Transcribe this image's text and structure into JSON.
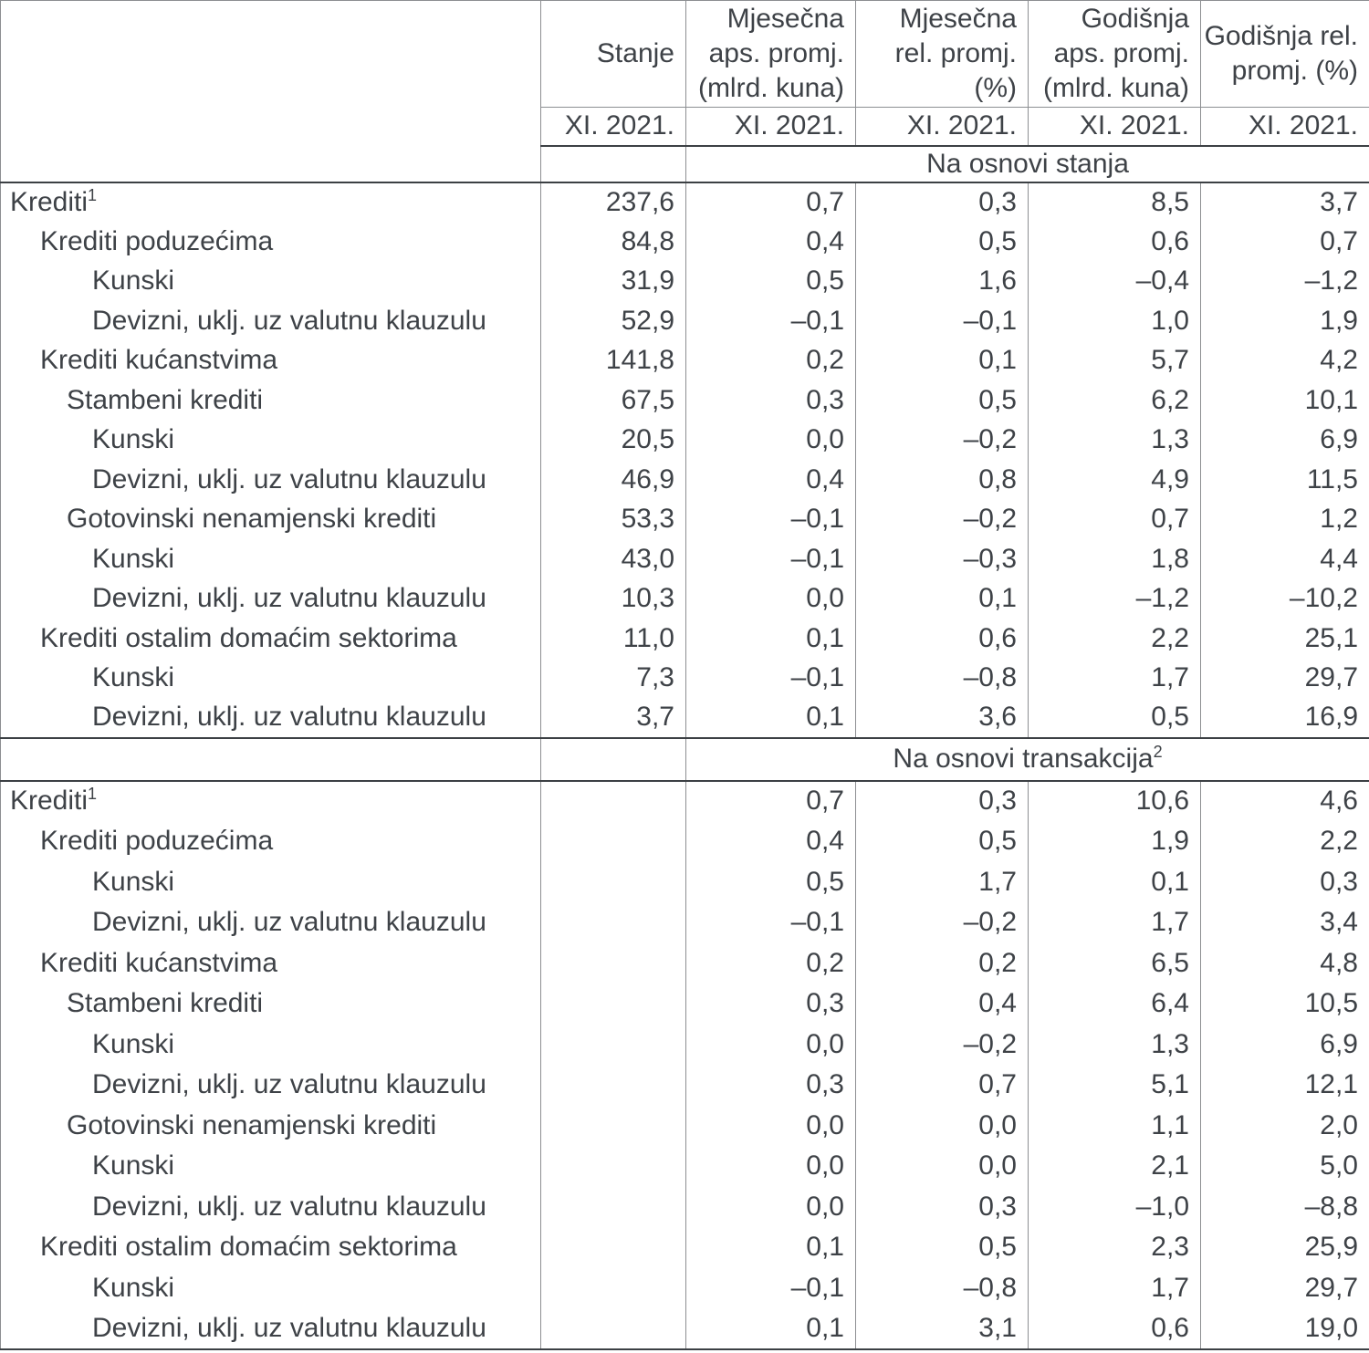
{
  "colors": {
    "text": "#3e4247",
    "line-light": "#8d8f92",
    "line-dark": "#3c4044",
    "bg": "#ffffff"
  },
  "table": {
    "columns": [
      {
        "key": "stanje",
        "title": "Stanje",
        "period": "XI. 2021."
      },
      {
        "key": "mjesecna-aps-promj",
        "title": "Mjesečna\naps. promj.\n(mlrd. kuna)",
        "period": "XI. 2021."
      },
      {
        "key": "mjesecna-rel-promj",
        "title": "Mjesečna\nrel. promj.\n(%)",
        "period": "XI. 2021."
      },
      {
        "key": "godisnja-aps-promj",
        "title": "Godišnja\naps. promj.\n(mlrd. kuna)",
        "period": "XI. 2021."
      },
      {
        "key": "godisnja-rel-promj",
        "title": "Godišnja rel.\npromj. (%)",
        "period": "XI. 2021."
      }
    ],
    "sections": [
      {
        "banner": "Na osnovi stanja",
        "banner_sup": "",
        "rows": [
          {
            "label": "Krediti",
            "sup": "1",
            "indent": 0,
            "values": [
              "237,6",
              "0,7",
              "0,3",
              "8,5",
              "3,7"
            ]
          },
          {
            "label": "Krediti poduzećima",
            "sup": "",
            "indent": 1,
            "values": [
              "84,8",
              "0,4",
              "0,5",
              "0,6",
              "0,7"
            ]
          },
          {
            "label": "Kunski",
            "sup": "",
            "indent": 3,
            "values": [
              "31,9",
              "0,5",
              "1,6",
              "–0,4",
              "–1,2"
            ]
          },
          {
            "label": "Devizni, uklj. uz valutnu klauzulu",
            "sup": "",
            "indent": 3,
            "values": [
              "52,9",
              "–0,1",
              "–0,1",
              "1,0",
              "1,9"
            ]
          },
          {
            "label": "Krediti kućanstvima",
            "sup": "",
            "indent": 1,
            "values": [
              "141,8",
              "0,2",
              "0,1",
              "5,7",
              "4,2"
            ]
          },
          {
            "label": "Stambeni krediti",
            "sup": "",
            "indent": 2,
            "values": [
              "67,5",
              "0,3",
              "0,5",
              "6,2",
              "10,1"
            ]
          },
          {
            "label": "Kunski",
            "sup": "",
            "indent": 3,
            "values": [
              "20,5",
              "0,0",
              "–0,2",
              "1,3",
              "6,9"
            ]
          },
          {
            "label": "Devizni, uklj. uz valutnu klauzulu",
            "sup": "",
            "indent": 3,
            "values": [
              "46,9",
              "0,4",
              "0,8",
              "4,9",
              "11,5"
            ]
          },
          {
            "label": "Gotovinski nenamjenski krediti",
            "sup": "",
            "indent": 2,
            "values": [
              "53,3",
              "–0,1",
              "–0,2",
              "0,7",
              "1,2"
            ]
          },
          {
            "label": "Kunski",
            "sup": "",
            "indent": 3,
            "values": [
              "43,0",
              "–0,1",
              "–0,3",
              "1,8",
              "4,4"
            ]
          },
          {
            "label": "Devizni, uklj. uz valutnu klauzulu",
            "sup": "",
            "indent": 3,
            "values": [
              "10,3",
              "0,0",
              "0,1",
              "–1,2",
              "–10,2"
            ]
          },
          {
            "label": "Krediti ostalim domaćim sektorima",
            "sup": "",
            "indent": 1,
            "values": [
              "11,0",
              "0,1",
              "0,6",
              "2,2",
              "25,1"
            ]
          },
          {
            "label": "Kunski",
            "sup": "",
            "indent": 3,
            "values": [
              "7,3",
              "–0,1",
              "–0,8",
              "1,7",
              "29,7"
            ]
          },
          {
            "label": "Devizni, uklj. uz valutnu klauzulu",
            "sup": "",
            "indent": 3,
            "values": [
              "3,7",
              "0,1",
              "3,6",
              "0,5",
              "16,9"
            ]
          }
        ]
      },
      {
        "banner": "Na osnovi transakcija",
        "banner_sup": "2",
        "rows": [
          {
            "label": "Krediti",
            "sup": "1",
            "indent": 0,
            "values": [
              "",
              "0,7",
              "0,3",
              "10,6",
              "4,6"
            ]
          },
          {
            "label": "Krediti poduzećima",
            "sup": "",
            "indent": 1,
            "values": [
              "",
              "0,4",
              "0,5",
              "1,9",
              "2,2"
            ]
          },
          {
            "label": "Kunski",
            "sup": "",
            "indent": 3,
            "values": [
              "",
              "0,5",
              "1,7",
              "0,1",
              "0,3"
            ]
          },
          {
            "label": "Devizni, uklj. uz valutnu klauzulu",
            "sup": "",
            "indent": 3,
            "values": [
              "",
              "–0,1",
              "–0,2",
              "1,7",
              "3,4"
            ]
          },
          {
            "label": "Krediti kućanstvima",
            "sup": "",
            "indent": 1,
            "values": [
              "",
              "0,2",
              "0,2",
              "6,5",
              "4,8"
            ]
          },
          {
            "label": "Stambeni krediti",
            "sup": "",
            "indent": 2,
            "values": [
              "",
              "0,3",
              "0,4",
              "6,4",
              "10,5"
            ]
          },
          {
            "label": "Kunski",
            "sup": "",
            "indent": 3,
            "values": [
              "",
              "0,0",
              "–0,2",
              "1,3",
              "6,9"
            ]
          },
          {
            "label": "Devizni, uklj. uz valutnu klauzulu",
            "sup": "",
            "indent": 3,
            "values": [
              "",
              "0,3",
              "0,7",
              "5,1",
              "12,1"
            ]
          },
          {
            "label": "Gotovinski nenamjenski krediti",
            "sup": "",
            "indent": 2,
            "values": [
              "",
              "0,0",
              "0,0",
              "1,1",
              "2,0"
            ]
          },
          {
            "label": "Kunski",
            "sup": "",
            "indent": 3,
            "values": [
              "",
              "0,0",
              "0,0",
              "2,1",
              "5,0"
            ]
          },
          {
            "label": "Devizni, uklj. uz valutnu klauzulu",
            "sup": "",
            "indent": 3,
            "values": [
              "",
              "0,0",
              "0,3",
              "–1,0",
              "–8,8"
            ]
          },
          {
            "label": "Krediti ostalim domaćim sektorima",
            "sup": "",
            "indent": 1,
            "values": [
              "",
              "0,1",
              "0,5",
              "2,3",
              "25,9"
            ]
          },
          {
            "label": "Kunski",
            "sup": "",
            "indent": 3,
            "values": [
              "",
              "–0,1",
              "–0,8",
              "1,7",
              "29,7"
            ]
          },
          {
            "label": "Devizni, uklj. uz valutnu klauzulu",
            "sup": "",
            "indent": 3,
            "values": [
              "",
              "0,1",
              "3,1",
              "0,6",
              "19,0"
            ]
          }
        ]
      }
    ]
  }
}
